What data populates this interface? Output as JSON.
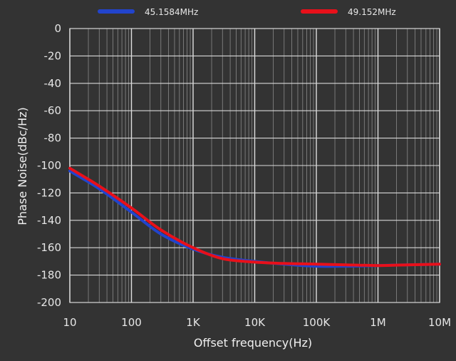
{
  "chart_data": {
    "type": "line",
    "title": "",
    "xlabel": "Offset frequency(Hz)",
    "ylabel": "Phase Noise(dBc/Hz)",
    "xscale": "log",
    "xlim": [
      10,
      10000000
    ],
    "ylim": [
      -200,
      0
    ],
    "x_ticks": [
      {
        "value": 10,
        "label": "10"
      },
      {
        "value": 100,
        "label": "100"
      },
      {
        "value": 1000,
        "label": "1K"
      },
      {
        "value": 10000,
        "label": "10K"
      },
      {
        "value": 100000,
        "label": "100K"
      },
      {
        "value": 1000000,
        "label": "1M"
      },
      {
        "value": 10000000,
        "label": "10M"
      }
    ],
    "y_ticks": [
      0,
      -20,
      -40,
      -60,
      -80,
      -100,
      -120,
      -140,
      -160,
      -180,
      -200
    ],
    "grid": true,
    "legend_position": "top",
    "series": [
      {
        "name": "45.1584MHz",
        "color": "#2244cc",
        "x": [
          10,
          30,
          100,
          300,
          1000,
          3000,
          10000,
          30000,
          100000,
          300000,
          1000000,
          3000000,
          10000000
        ],
        "y": [
          -104,
          -117,
          -134,
          -150,
          -161,
          -167,
          -170,
          -172,
          -173.5,
          -173.5,
          -173,
          -172.5,
          -172
        ]
      },
      {
        "name": "49.152MHz",
        "color": "#e8101a",
        "x": [
          10,
          30,
          100,
          300,
          1000,
          3000,
          10000,
          30000,
          100000,
          300000,
          1000000,
          3000000,
          10000000
        ],
        "y": [
          -102,
          -115,
          -131,
          -147,
          -160,
          -168,
          -170.5,
          -171.5,
          -172,
          -172.5,
          -173,
          -172.5,
          -172
        ]
      }
    ]
  }
}
